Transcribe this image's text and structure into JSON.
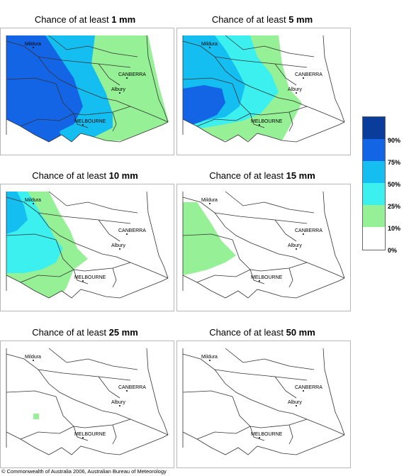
{
  "panels": [
    {
      "title_prefix": "Chance of at least ",
      "threshold": "1 mm"
    },
    {
      "title_prefix": "Chance of at least ",
      "threshold": "5 mm"
    },
    {
      "title_prefix": "Chance of at least ",
      "threshold": "10 mm"
    },
    {
      "title_prefix": "Chance of at least ",
      "threshold": "15 mm"
    },
    {
      "title_prefix": "Chance of at least ",
      "threshold": "25 mm"
    },
    {
      "title_prefix": "Chance of at least ",
      "threshold": "50 mm"
    }
  ],
  "places": {
    "mildura": "Mildura",
    "canberra": "CANBERRA",
    "albury": "Albury",
    "melbourne": "MELBOURNE"
  },
  "legend": {
    "labels": [
      "90%",
      "75%",
      "50%",
      "25%",
      "10%",
      "0%"
    ],
    "colors": [
      "#0a3c9c",
      "#1464e6",
      "#14bef0",
      "#3cf0f0",
      "#96f096",
      "#ffffff"
    ]
  },
  "copyright": "© Commonwealth of Australia 2006, Australian Bureau of Meteorology"
}
